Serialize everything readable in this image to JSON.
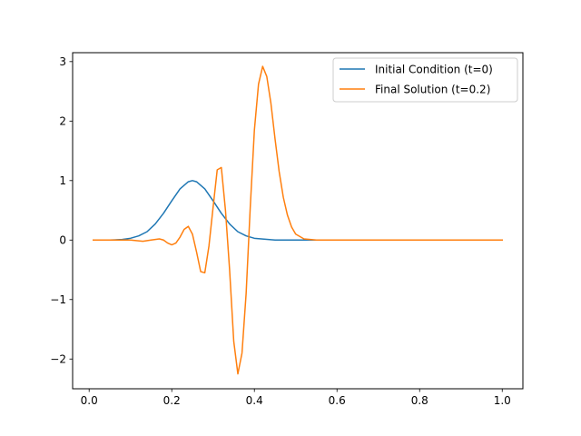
{
  "chart_data": {
    "type": "line",
    "title": "",
    "xlabel": "",
    "ylabel": "",
    "xlim": [
      -0.04,
      1.05
    ],
    "ylim": [
      -2.5,
      3.15
    ],
    "xticks": [
      0.0,
      0.2,
      0.4,
      0.6,
      0.8,
      1.0
    ],
    "yticks": [
      -2,
      -1,
      0,
      1,
      2,
      3
    ],
    "xtick_labels": [
      "0.0",
      "0.2",
      "0.4",
      "0.6",
      "0.8",
      "1.0"
    ],
    "ytick_labels": [
      "−2",
      "−1",
      "0",
      "1",
      "2",
      "3"
    ],
    "grid": false,
    "legend_position": "top-right",
    "series": [
      {
        "name": "Initial Condition (t=0)",
        "color": "#1f77b4",
        "x": [
          0.01,
          0.05,
          0.08,
          0.1,
          0.12,
          0.14,
          0.16,
          0.18,
          0.2,
          0.22,
          0.24,
          0.25,
          0.26,
          0.28,
          0.3,
          0.32,
          0.34,
          0.36,
          0.38,
          0.4,
          0.45,
          0.5,
          1.0
        ],
        "y": [
          0.0,
          0.0,
          0.01,
          0.03,
          0.07,
          0.14,
          0.27,
          0.45,
          0.66,
          0.86,
          0.98,
          1.0,
          0.98,
          0.86,
          0.66,
          0.45,
          0.27,
          0.14,
          0.07,
          0.03,
          0.0,
          0.0,
          0.0
        ]
      },
      {
        "name": "Final Solution (t=0.2)",
        "color": "#ff7f0e",
        "x": [
          0.01,
          0.1,
          0.13,
          0.15,
          0.17,
          0.18,
          0.19,
          0.2,
          0.21,
          0.22,
          0.23,
          0.24,
          0.25,
          0.26,
          0.27,
          0.28,
          0.29,
          0.3,
          0.31,
          0.32,
          0.33,
          0.34,
          0.35,
          0.36,
          0.37,
          0.38,
          0.39,
          0.4,
          0.41,
          0.42,
          0.43,
          0.44,
          0.45,
          0.46,
          0.47,
          0.48,
          0.49,
          0.5,
          0.52,
          0.55,
          0.6,
          1.0
        ],
        "y": [
          0.0,
          0.0,
          -0.02,
          0.0,
          0.02,
          0.0,
          -0.05,
          -0.08,
          -0.05,
          0.05,
          0.18,
          0.23,
          0.1,
          -0.2,
          -0.53,
          -0.55,
          -0.1,
          0.55,
          1.18,
          1.22,
          0.5,
          -0.5,
          -1.7,
          -2.25,
          -1.9,
          -0.9,
          0.55,
          1.85,
          2.62,
          2.92,
          2.75,
          2.3,
          1.7,
          1.15,
          0.72,
          0.42,
          0.22,
          0.1,
          0.02,
          0.0,
          0.0,
          0.0
        ]
      }
    ]
  }
}
